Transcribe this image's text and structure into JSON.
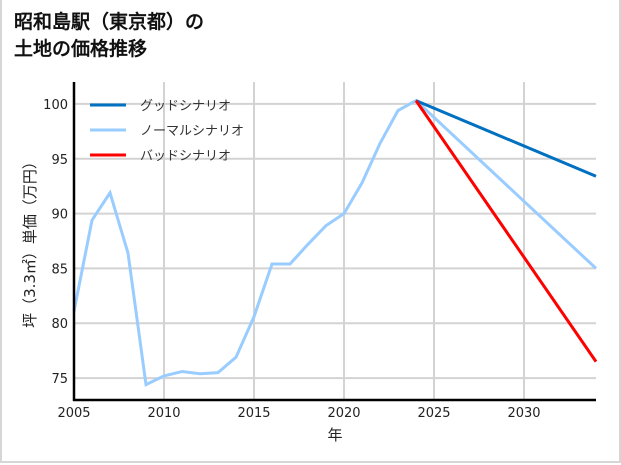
{
  "title": {
    "line1": "昭和島駅（東京都）の",
    "line2": "土地の価格推移"
  },
  "colors": {
    "good": "#0070c0",
    "normal": "#99ccff",
    "bad": "#ff0000",
    "grid": "#d3d3d3",
    "axis": "#000000"
  },
  "chart_data": {
    "type": "line",
    "title": "昭和島駅（東京都）の土地の価格推移",
    "xlabel": "年",
    "ylabel": "坪（3.3㎡）単価（万円）",
    "xlim": [
      2005,
      2034
    ],
    "ylim": [
      73,
      102
    ],
    "x_ticks": [
      2005,
      2010,
      2015,
      2020,
      2025,
      2030
    ],
    "y_ticks": [
      75,
      80,
      85,
      90,
      95,
      100
    ],
    "grid": true,
    "legend_position": "upper left",
    "series": [
      {
        "name": "グッドシナリオ",
        "color": "#0070c0",
        "x": [
          2024,
          2034
        ],
        "values": [
          100.3,
          93.4
        ]
      },
      {
        "name": "ノーマルシナリオ",
        "color": "#99ccff",
        "x": [
          2005,
          2006,
          2007,
          2008,
          2009,
          2010,
          2011,
          2012,
          2013,
          2014,
          2015,
          2016,
          2017,
          2018,
          2019,
          2020,
          2021,
          2022,
          2023,
          2024,
          2034
        ],
        "values": [
          81.1,
          89.4,
          91.9,
          86.4,
          74.4,
          75.2,
          75.6,
          75.4,
          75.5,
          76.9,
          80.6,
          85.4,
          85.4,
          87.2,
          88.9,
          90.0,
          92.8,
          96.4,
          99.4,
          100.3,
          85.0
        ]
      },
      {
        "name": "バッドシナリオ",
        "color": "#ff0000",
        "x": [
          2024,
          2034
        ],
        "values": [
          100.3,
          76.5
        ]
      }
    ]
  }
}
